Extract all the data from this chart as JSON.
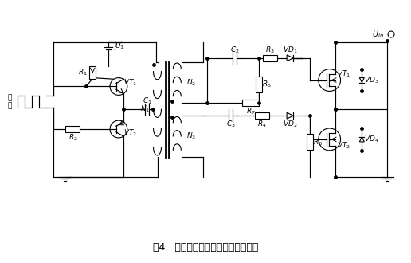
{
  "title": "图4   新型的不对称半桥隔离驱动电路",
  "bg_color": "#ffffff",
  "fig_width": 5.16,
  "fig_height": 3.3,
  "dpi": 100
}
